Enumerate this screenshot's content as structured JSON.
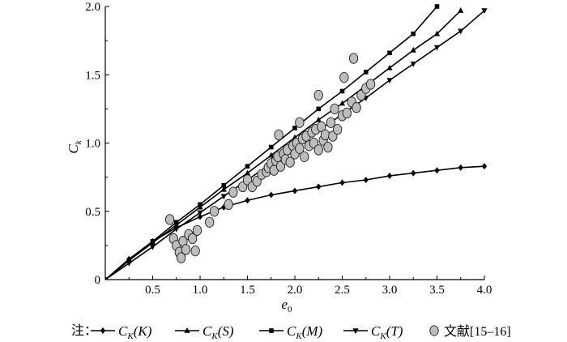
{
  "chart_data": {
    "type": "line",
    "xlabel": "e",
    "xlabel_sub": "0",
    "ylabel": "C",
    "ylabel_sub": "k",
    "xlim": [
      0,
      4.0
    ],
    "ylim": [
      0,
      2.0
    ],
    "xticks": [
      0.5,
      1.0,
      1.5,
      2.0,
      2.5,
      3.0,
      3.5,
      4.0
    ],
    "xtick_labels": [
      "0.5",
      "1.0",
      "1.5",
      "2.0",
      "2.5",
      "3.0",
      "3.5",
      "4.0"
    ],
    "yticks": [
      0,
      0.5,
      1.0,
      1.5,
      2.0
    ],
    "ytick_labels": [
      "0",
      "0.5",
      "1.0",
      "1.5",
      "2.0"
    ],
    "grid": false,
    "legend_position": "bottom",
    "legend_prefix": "注：",
    "series": [
      {
        "name": "Ck(K)",
        "label": {
          "main": "C",
          "sub": "K",
          "arg": "(K)"
        },
        "marker": "diamond",
        "x": [
          0.0,
          0.25,
          0.5,
          0.75,
          1.0,
          1.25,
          1.5,
          1.75,
          2.0,
          2.25,
          2.5,
          2.75,
          3.0,
          3.25,
          3.5,
          3.75,
          4.0
        ],
        "y": [
          0.0,
          0.15,
          0.28,
          0.38,
          0.46,
          0.53,
          0.58,
          0.62,
          0.65,
          0.68,
          0.71,
          0.73,
          0.76,
          0.78,
          0.8,
          0.82,
          0.83
        ]
      },
      {
        "name": "Ck(S)",
        "label": {
          "main": "C",
          "sub": "K",
          "arg": "(S)"
        },
        "marker": "triangle-up",
        "x": [
          0.0,
          0.25,
          0.5,
          0.75,
          1.0,
          1.25,
          1.5,
          1.75,
          2.0,
          2.25,
          2.5,
          2.75,
          3.0,
          3.25,
          3.5,
          3.75
        ],
        "y": [
          0.0,
          0.14,
          0.27,
          0.4,
          0.53,
          0.66,
          0.78,
          0.91,
          1.04,
          1.17,
          1.29,
          1.42,
          1.55,
          1.68,
          1.8,
          1.97
        ]
      },
      {
        "name": "Ck(M)",
        "label": {
          "main": "C",
          "sub": "K",
          "arg": "(M)"
        },
        "marker": "square",
        "x": [
          0.0,
          0.25,
          0.5,
          0.75,
          1.0,
          1.25,
          1.5,
          1.75,
          2.0,
          2.25,
          2.5,
          2.75,
          3.0,
          3.25,
          3.5
        ],
        "y": [
          0.0,
          0.14,
          0.28,
          0.42,
          0.55,
          0.69,
          0.83,
          0.97,
          1.11,
          1.25,
          1.38,
          1.52,
          1.66,
          1.8,
          2.0
        ]
      },
      {
        "name": "Ck(T)",
        "label": {
          "main": "C",
          "sub": "K",
          "arg": "(T)"
        },
        "marker": "triangle-down",
        "x": [
          0.0,
          0.25,
          0.5,
          0.75,
          1.0,
          1.25,
          1.5,
          1.75,
          2.0,
          2.25,
          2.5,
          2.75,
          3.0,
          3.25,
          3.5,
          3.75,
          4.0
        ],
        "y": [
          0.0,
          0.12,
          0.24,
          0.37,
          0.49,
          0.61,
          0.73,
          0.85,
          0.97,
          1.09,
          1.21,
          1.33,
          1.46,
          1.58,
          1.7,
          1.82,
          1.97
        ]
      },
      {
        "name": "文献[15-16]",
        "label": {
          "main": "文献[15–16]",
          "sub": "",
          "arg": ""
        },
        "marker": "circle",
        "type": "scatter",
        "x": [
          0.68,
          0.72,
          0.75,
          0.78,
          0.8,
          0.82,
          0.85,
          0.88,
          0.92,
          0.95,
          0.97,
          1.1,
          1.15,
          1.3,
          1.35,
          1.45,
          1.5,
          1.55,
          1.6,
          1.65,
          1.7,
          1.72,
          1.75,
          1.78,
          1.8,
          1.82,
          1.85,
          1.88,
          1.9,
          1.92,
          1.95,
          1.98,
          2.0,
          2.02,
          2.05,
          2.08,
          2.1,
          2.12,
          2.15,
          2.18,
          2.2,
          2.22,
          2.25,
          2.28,
          2.3,
          2.32,
          2.35,
          2.38,
          2.4,
          2.45,
          2.5,
          2.55,
          2.6,
          2.65,
          2.7,
          2.75,
          2.8,
          1.83,
          2.25,
          2.62,
          2.42,
          2.05,
          2.52
        ],
        "y": [
          0.44,
          0.3,
          0.25,
          0.2,
          0.16,
          0.28,
          0.22,
          0.33,
          0.3,
          0.21,
          0.36,
          0.42,
          0.5,
          0.55,
          0.64,
          0.68,
          0.73,
          0.68,
          0.72,
          0.77,
          0.79,
          0.82,
          0.85,
          0.8,
          0.87,
          0.9,
          0.83,
          0.92,
          0.88,
          0.95,
          0.86,
          0.98,
          0.92,
          1.0,
          0.96,
          1.03,
          0.9,
          1.05,
          0.98,
          1.08,
          1.0,
          1.1,
          0.95,
          1.12,
          1.02,
          1.06,
          0.97,
          1.15,
          1.05,
          1.1,
          1.2,
          1.22,
          1.3,
          1.26,
          1.35,
          1.4,
          1.43,
          1.06,
          1.35,
          1.62,
          1.25,
          1.15,
          1.48
        ]
      }
    ]
  }
}
